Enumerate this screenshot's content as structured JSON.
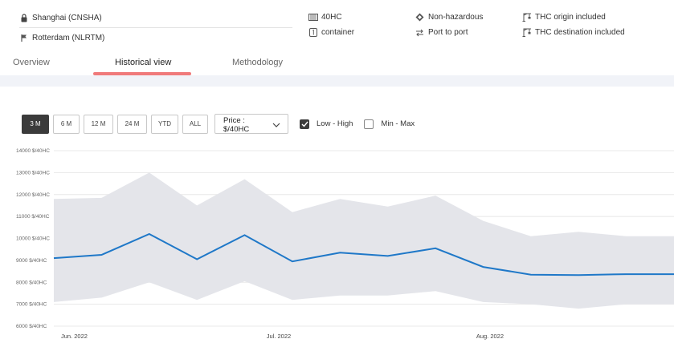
{
  "route": {
    "origin": "Shanghai (CNSHA)",
    "destination": "Rotterdam (NLRTM)"
  },
  "specs": {
    "equipment": "40HC",
    "equipment_unit": "container",
    "cargo": "Non-hazardous",
    "service": "Port to port",
    "thc_origin": "THC origin included",
    "thc_destination": "THC destination included"
  },
  "tabs": [
    "Overview",
    "Historical view",
    "Methodology"
  ],
  "active_tab": "Historical view",
  "toolbar": {
    "ranges": [
      "3 M",
      "6 M",
      "12 M",
      "24 M",
      "YTD",
      "ALL"
    ],
    "active_range": "3 M",
    "price_select_line1": "Price :",
    "price_select_line2": "$/40HC",
    "low_high_label": "Low - High",
    "low_high_checked": true,
    "min_max_label": "Min - Max",
    "min_max_checked": false
  },
  "colors": {
    "line": "#1f78c8",
    "band": "#e4e5ea",
    "active_button": "#3b3b3b",
    "tab_underline": "#f07a7a"
  },
  "chart_data": {
    "type": "area",
    "y_tick_labels": [
      "6000 $/40HC",
      "7000 $/40HC",
      "8000 $/40HC",
      "9000 $/40HC",
      "10000 $/40HC",
      "11000 $/40HC",
      "12000 $/40HC",
      "13000 $/40HC",
      "14000 $/40HC"
    ],
    "y_ticks": [
      6000,
      7000,
      8000,
      9000,
      10000,
      11000,
      12000,
      13000,
      14000
    ],
    "ylim": [
      6000,
      14000
    ],
    "x_labels": [
      "Jun. 2022",
      "Jul. 2022",
      "Aug. 2022"
    ],
    "x_label_dates": [
      "2022-06-01",
      "2022-07-01",
      "2022-08-01"
    ],
    "x_dates": [
      "2022-05-29",
      "2022-06-05",
      "2022-06-12",
      "2022-06-19",
      "2022-06-26",
      "2022-07-03",
      "2022-07-10",
      "2022-07-17",
      "2022-07-24",
      "2022-07-31",
      "2022-08-07",
      "2022-08-14",
      "2022-08-21",
      "2022-08-28"
    ],
    "xlim": [
      "2022-05-29",
      "2022-08-28"
    ],
    "series": [
      {
        "values": [
          9100,
          9250,
          10200,
          9050,
          10150,
          8950,
          9350,
          9200,
          9550,
          8700,
          8350,
          8330,
          8370,
          8370
        ]
      }
    ],
    "band_high": [
      11800,
      11850,
      13000,
      11500,
      12700,
      11200,
      11800,
      11450,
      11950,
      10800,
      10100,
      10300,
      10100,
      10100
    ],
    "band_low": [
      7100,
      7300,
      8000,
      7200,
      8050,
      7200,
      7400,
      7400,
      7600,
      7100,
      7000,
      6800,
      7000,
      7000
    ],
    "grid": true
  }
}
